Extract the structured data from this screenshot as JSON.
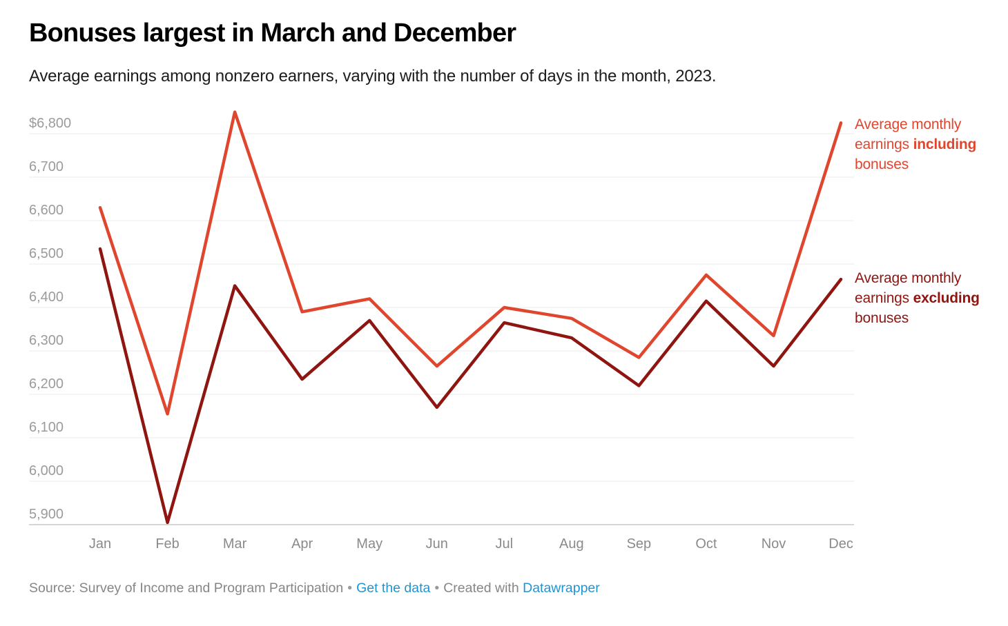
{
  "chart_data": {
    "type": "line",
    "title": "Bonuses largest in March and December",
    "subtitle": "Average earnings among nonzero earners, varying with the number of days in the month, 2023.",
    "x": [
      "Jan",
      "Feb",
      "Mar",
      "Apr",
      "May",
      "Jun",
      "Jul",
      "Aug",
      "Sep",
      "Oct",
      "Nov",
      "Dec"
    ],
    "series": [
      {
        "id": "including-bonuses",
        "name": "Average monthly earnings including bonuses",
        "color": "#e0462e",
        "values": [
          6630,
          6155,
          6850,
          6390,
          6420,
          6265,
          6400,
          6375,
          6285,
          6475,
          6335,
          6825
        ]
      },
      {
        "id": "excluding-bonuses",
        "name": "Average monthly earnings excluding bonuses",
        "color": "#8e1510",
        "values": [
          6535,
          5905,
          6450,
          6235,
          6370,
          6170,
          6365,
          6330,
          6220,
          6415,
          6265,
          6465
        ]
      }
    ],
    "ylim": [
      5900,
      6860
    ],
    "yticks": [
      6800,
      6700,
      6600,
      6500,
      6400,
      6300,
      6200,
      6100,
      6000,
      5900
    ],
    "ytick_labels": [
      "$6,800",
      "6,700",
      "6,600",
      "6,500",
      "6,400",
      "6,300",
      "6,200",
      "6,100",
      "6,000",
      "5,900"
    ],
    "grid": "horizontal",
    "legend_position": "right",
    "legend_annotations": {
      "including": {
        "line1": "Average monthly",
        "line2_plain": "earnings ",
        "line2_bold": "including",
        "line3": "bonuses"
      },
      "excluding": {
        "line1": "Average monthly",
        "line2_plain": "earnings ",
        "line2_bold": "excluding",
        "line3": "bonuses"
      }
    }
  },
  "footer": {
    "source": "Source: Survey of Income and Program Participation",
    "separator": "•",
    "get_data_link": "Get the data",
    "created_with": "Created with",
    "datawrapper_link": "Datawrapper"
  },
  "colors": {
    "including_red": "#e0462e",
    "excluding_dark_red": "#8e1510",
    "gridline": "#ebebeb",
    "axis_line": "#c8c8c8",
    "y_tick_text": "#9b9b9b",
    "x_tick_text": "#8a8a8a",
    "title_text": "#000000",
    "subtitle_text": "#1c1c1c",
    "footer_text": "#868686",
    "link_blue": "#1e95d2"
  }
}
